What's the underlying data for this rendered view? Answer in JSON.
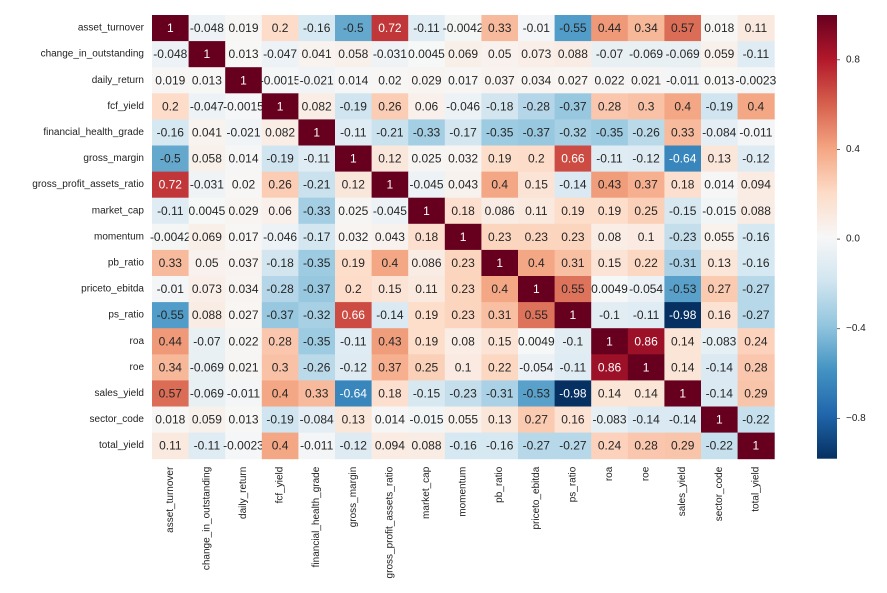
{
  "chart_data": {
    "type": "heatmap",
    "title": "",
    "xlabel": "",
    "ylabel": "",
    "labels": [
      "asset_turnover",
      "change_in_outstanding",
      "daily_return",
      "fcf_yield",
      "financial_health_grade",
      "gross_margin",
      "gross_profit_assets_ratio",
      "market_cap",
      "momentum",
      "pb_ratio",
      "priceto_ebitda",
      "ps_ratio",
      "roa",
      "roe",
      "sales_yield",
      "sector_code",
      "total_yield"
    ],
    "values": [
      [
        1,
        -0.048,
        0.019,
        0.2,
        -0.16,
        -0.5,
        0.72,
        -0.11,
        -0.0042,
        0.33,
        -0.01,
        -0.55,
        0.44,
        0.34,
        0.57,
        0.018,
        0.11
      ],
      [
        -0.048,
        1,
        0.013,
        -0.047,
        0.041,
        0.058,
        -0.031,
        0.0045,
        0.069,
        0.05,
        0.073,
        0.088,
        -0.07,
        -0.069,
        -0.069,
        0.059,
        -0.11
      ],
      [
        0.019,
        0.013,
        1,
        -0.0015,
        -0.021,
        0.014,
        0.02,
        0.029,
        0.017,
        0.037,
        0.034,
        0.027,
        0.022,
        0.021,
        -0.011,
        0.013,
        -0.0023
      ],
      [
        0.2,
        -0.047,
        -0.0015,
        1,
        0.082,
        -0.19,
        0.26,
        0.06,
        -0.046,
        -0.18,
        -0.28,
        -0.37,
        0.28,
        0.3,
        0.4,
        -0.19,
        0.4
      ],
      [
        -0.16,
        0.041,
        -0.021,
        0.082,
        1,
        -0.11,
        -0.21,
        -0.33,
        -0.17,
        -0.35,
        -0.37,
        -0.32,
        -0.35,
        -0.26,
        0.33,
        -0.084,
        -0.011
      ],
      [
        -0.5,
        0.058,
        0.014,
        -0.19,
        -0.11,
        1,
        0.12,
        0.025,
        0.032,
        0.19,
        0.2,
        0.66,
        -0.11,
        -0.12,
        -0.64,
        0.13,
        -0.12
      ],
      [
        0.72,
        -0.031,
        0.02,
        0.26,
        -0.21,
        0.12,
        1,
        -0.045,
        0.043,
        0.4,
        0.15,
        -0.14,
        0.43,
        0.37,
        0.18,
        0.014,
        0.094
      ],
      [
        -0.11,
        0.0045,
        0.029,
        0.06,
        -0.33,
        0.025,
        -0.045,
        1,
        0.18,
        0.086,
        0.11,
        0.19,
        0.19,
        0.25,
        -0.15,
        -0.015,
        0.088
      ],
      [
        -0.0042,
        0.069,
        0.017,
        -0.046,
        -0.17,
        0.032,
        0.043,
        0.18,
        1,
        0.23,
        0.23,
        0.23,
        0.08,
        0.1,
        -0.23,
        0.055,
        -0.16
      ],
      [
        0.33,
        0.05,
        0.037,
        -0.18,
        -0.35,
        0.19,
        0.4,
        0.086,
        0.23,
        1,
        0.4,
        0.31,
        0.15,
        0.22,
        -0.31,
        0.13,
        -0.16
      ],
      [
        -0.01,
        0.073,
        0.034,
        -0.28,
        -0.37,
        0.2,
        0.15,
        0.11,
        0.23,
        0.4,
        1,
        0.55,
        0.0049,
        -0.054,
        -0.53,
        0.27,
        -0.27
      ],
      [
        -0.55,
        0.088,
        0.027,
        -0.37,
        -0.32,
        0.66,
        -0.14,
        0.19,
        0.23,
        0.31,
        0.55,
        1,
        -0.1,
        -0.11,
        -0.98,
        0.16,
        -0.27
      ],
      [
        0.44,
        -0.07,
        0.022,
        0.28,
        -0.35,
        -0.11,
        0.43,
        0.19,
        0.08,
        0.15,
        0.0049,
        -0.1,
        1,
        0.86,
        0.14,
        -0.083,
        0.24
      ],
      [
        0.34,
        -0.069,
        0.021,
        0.3,
        -0.26,
        -0.12,
        0.37,
        0.25,
        0.1,
        0.22,
        -0.054,
        -0.11,
        0.86,
        1,
        0.14,
        -0.14,
        0.28
      ],
      [
        0.57,
        -0.069,
        -0.011,
        0.4,
        0.33,
        -0.64,
        0.18,
        -0.15,
        -0.23,
        -0.31,
        -0.53,
        -0.98,
        0.14,
        0.14,
        1,
        -0.14,
        0.29
      ],
      [
        0.018,
        0.059,
        0.013,
        -0.19,
        -0.084,
        0.13,
        0.014,
        -0.015,
        0.055,
        0.13,
        0.27,
        0.16,
        -0.083,
        -0.14,
        -0.14,
        1,
        -0.22
      ],
      [
        0.11,
        -0.11,
        -0.0023,
        0.4,
        -0.011,
        -0.12,
        0.094,
        0.088,
        -0.16,
        -0.16,
        -0.27,
        -0.27,
        0.24,
        0.28,
        0.29,
        -0.22,
        1
      ]
    ],
    "colorbar": {
      "range": [
        -0.98,
        1
      ],
      "ticks": [
        0.8,
        0.4,
        0.0,
        -0.4,
        -0.8
      ],
      "tick_labels": [
        "0.8",
        "0.4",
        "0.0",
        "−0.4",
        "−0.8"
      ],
      "colormap": "RdBu_r",
      "colors": {
        "low": "#053061",
        "mid": "#f7f7f7",
        "high": "#67001f"
      }
    },
    "grid": false,
    "legend": "colorbar-right"
  }
}
